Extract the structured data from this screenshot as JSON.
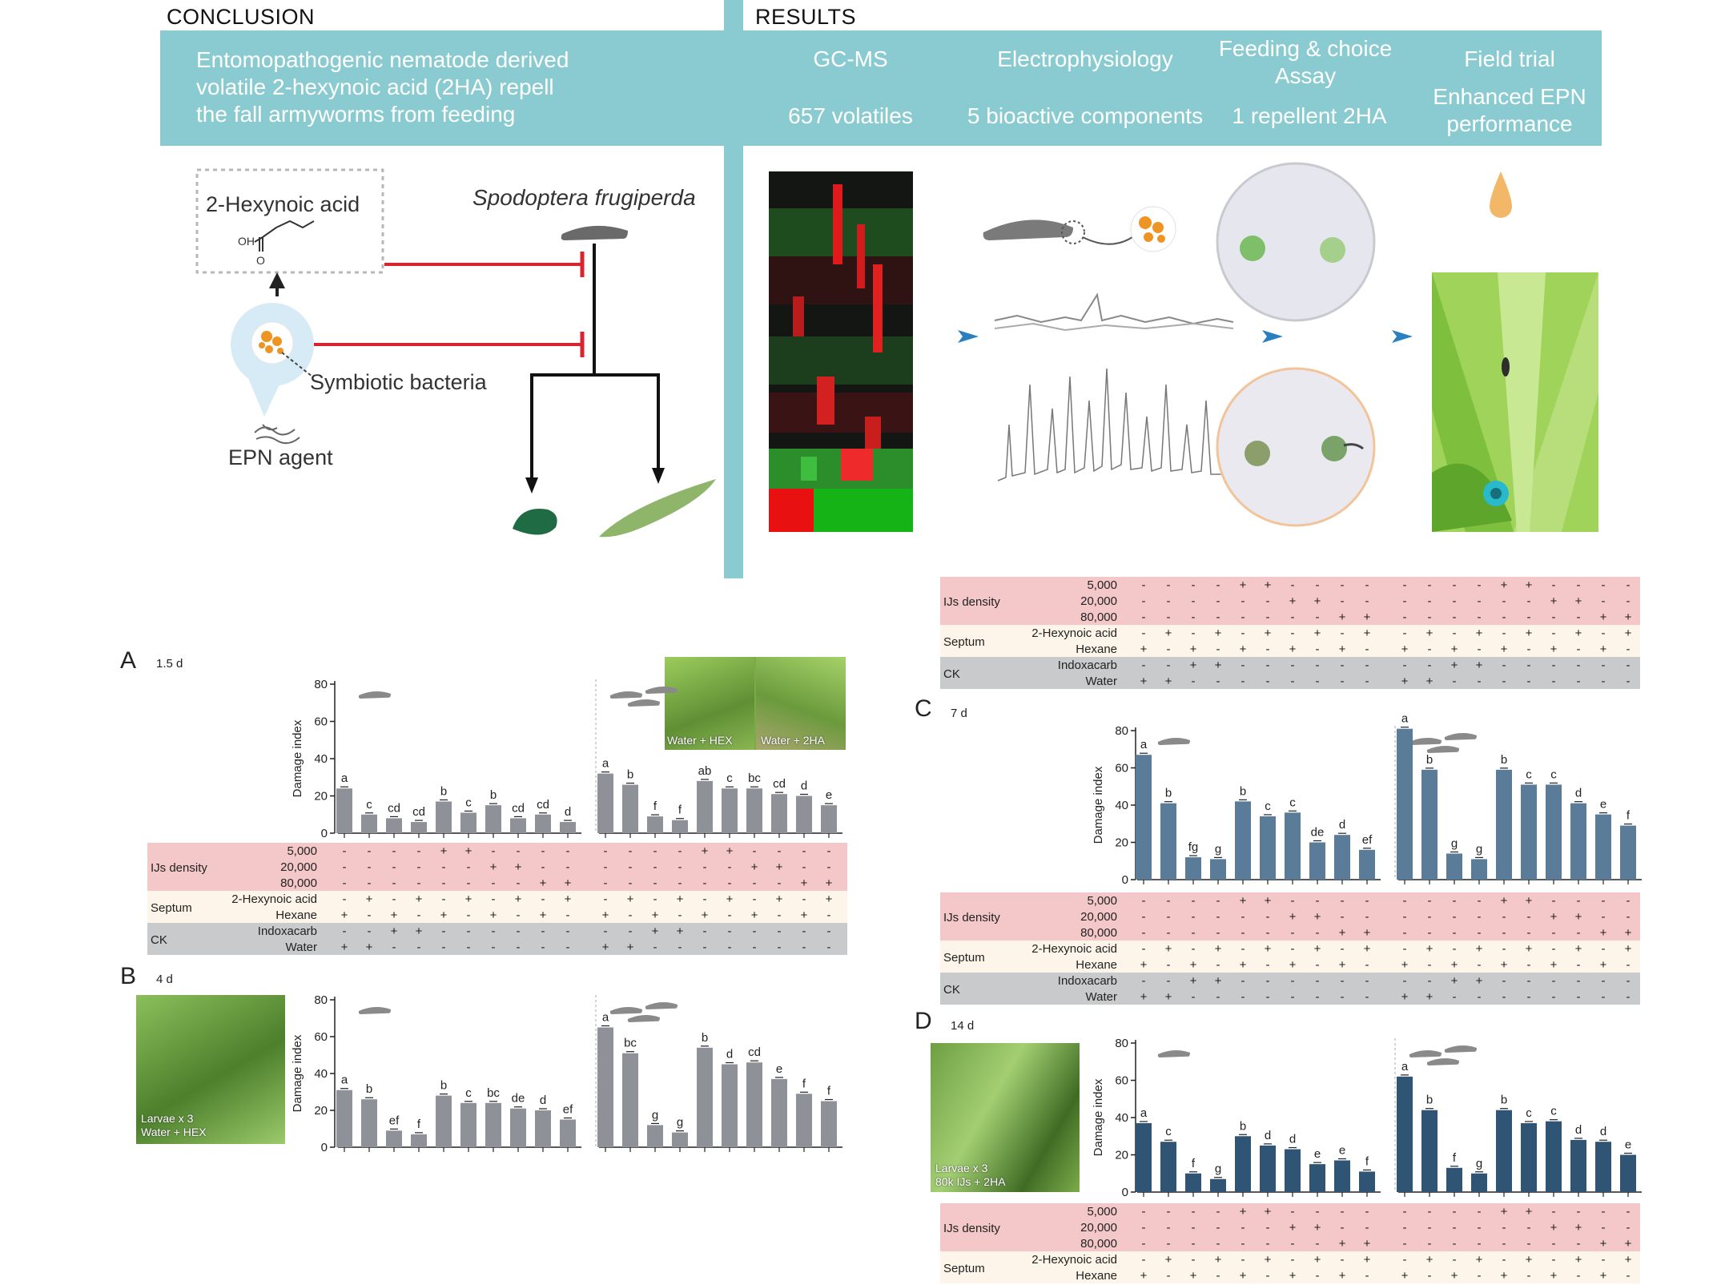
{
  "headers": {
    "conclusion": "CONCLUSION",
    "results": "RESULTS"
  },
  "banner": {
    "conclusion_lines": [
      "Entomopathogenic nematode derived",
      "volatile 2-hexynoic acid (2HA) repell",
      "the fall armyworms from feeding"
    ],
    "gcms_title": "GC-MS",
    "gcms_value": "657 volatiles",
    "ephys_title": "Electrophysiology",
    "ephys_value": "5 bioactive components",
    "feeding_title_lines": [
      "Feeding & choice",
      "Assay"
    ],
    "feeding_value": "1 repellent 2HA",
    "field_title": "Field trial",
    "field_value_lines": [
      "Enhanced EPN",
      "performance"
    ]
  },
  "scheme": {
    "compound": "2-Hexynoic acid",
    "oh_label": "OH",
    "o_label": "O",
    "species": "Spodoptera frugiperda",
    "bacteria": "Symbiotic bacteria",
    "agent": "EPN agent"
  },
  "colors": {
    "teal": "#8acbd1",
    "inhibit": "#d9232e",
    "grey": "#8e9298",
    "steel": "#5b7c99",
    "navy": "#2f5474",
    "pink": "#f4c7c9",
    "cream": "#fdf5ea",
    "cktable": "#c8cacb",
    "arrow": "#2a7fc1"
  },
  "treatment_table": {
    "groups": [
      {
        "label": "IJs density",
        "rows": [
          "5,000",
          "20,000",
          "80,000"
        ]
      },
      {
        "label": "Septum",
        "rows": [
          "2-Hexynoic acid",
          "Hexane"
        ]
      },
      {
        "label": "CK",
        "rows": [
          "Indoxacarb",
          "Water"
        ]
      }
    ],
    "signs": [
      [
        "-",
        "-",
        "-",
        "-",
        "+",
        "+",
        "-",
        "-",
        "-",
        "-"
      ],
      [
        "-",
        "-",
        "-",
        "-",
        "-",
        "-",
        "+",
        "+",
        "-",
        "-"
      ],
      [
        "-",
        "-",
        "-",
        "-",
        "-",
        "-",
        "-",
        "-",
        "+",
        "+"
      ],
      [
        "-",
        "+",
        "-",
        "+",
        "-",
        "+",
        "-",
        "+",
        "-",
        "+"
      ],
      [
        "+",
        "-",
        "+",
        "-",
        "+",
        "-",
        "+",
        "-",
        "+",
        "-"
      ],
      [
        "-",
        "-",
        "+",
        "+",
        "-",
        "-",
        "-",
        "-",
        "-",
        "-"
      ],
      [
        "+",
        "+",
        "-",
        "-",
        "-",
        "-",
        "-",
        "-",
        "-",
        "-"
      ]
    ]
  },
  "panels": {
    "A": {
      "letter": "A",
      "day": "1.5 d"
    },
    "B": {
      "letter": "B",
      "day": "4 d"
    },
    "C": {
      "letter": "C",
      "day": "7 d"
    },
    "D": {
      "letter": "D",
      "day": "14 d"
    }
  },
  "photos": {
    "a_left": "Water + HEX",
    "a_right": "Water + 2HA",
    "b_lines": [
      "Larvae x 3",
      "Water + HEX"
    ],
    "d_lines": [
      "Larvae x 3",
      "80k IJs + 2HA"
    ]
  },
  "chart_data": [
    {
      "type": "bar",
      "panel": "A",
      "day": "1.5 d",
      "ylabel": "Damage index",
      "ylim": [
        0,
        80
      ],
      "yticks": [
        "0",
        "20",
        "40",
        "60",
        "80"
      ],
      "color": "#8e9298",
      "series": [
        {
          "larvae": 1,
          "values": [
            24,
            10,
            8,
            6,
            17,
            11,
            15,
            8,
            10,
            6
          ],
          "labels": [
            "a",
            "c",
            "cd",
            "cd",
            "b",
            "c",
            "b",
            "cd",
            "cd",
            "d"
          ]
        },
        {
          "larvae": 3,
          "values": [
            32,
            26,
            9,
            7,
            28,
            24,
            24,
            21,
            20,
            15
          ],
          "labels": [
            "a",
            "b",
            "f",
            "f",
            "ab",
            "c",
            "bc",
            "cd",
            "d",
            "e"
          ]
        }
      ]
    },
    {
      "type": "bar",
      "panel": "B",
      "day": "4 d",
      "ylabel": "Damage index",
      "ylim": [
        0,
        80
      ],
      "yticks": [
        "0",
        "20",
        "40",
        "60",
        "80"
      ],
      "color": "#8e9298",
      "series": [
        {
          "larvae": 1,
          "values": [
            31,
            26,
            9,
            7,
            28,
            24,
            24,
            21,
            20,
            15
          ],
          "labels": [
            "a",
            "b",
            "ef",
            "f",
            "b",
            "c",
            "bc",
            "de",
            "d",
            "ef"
          ]
        },
        {
          "larvae": 3,
          "values": [
            65,
            51,
            12,
            8,
            54,
            45,
            46,
            37,
            29,
            25
          ],
          "labels": [
            "a",
            "bc",
            "g",
            "g",
            "b",
            "d",
            "cd",
            "e",
            "f",
            "f"
          ]
        }
      ]
    },
    {
      "type": "bar",
      "panel": "C",
      "day": "7 d",
      "ylabel": "Damage index",
      "ylim": [
        0,
        80
      ],
      "yticks": [
        "0",
        "20",
        "40",
        "60",
        "80"
      ],
      "color": "#5b7c99",
      "series": [
        {
          "larvae": 1,
          "values": [
            67,
            41,
            12,
            11,
            42,
            34,
            36,
            20,
            24,
            16
          ],
          "labels": [
            "a",
            "b",
            "fg",
            "g",
            "b",
            "c",
            "c",
            "de",
            "d",
            "ef"
          ]
        },
        {
          "larvae": 3,
          "values": [
            81,
            59,
            14,
            11,
            59,
            51,
            51,
            41,
            35,
            29
          ],
          "labels": [
            "a",
            "b",
            "g",
            "g",
            "b",
            "c",
            "c",
            "d",
            "e",
            "f"
          ]
        }
      ]
    },
    {
      "type": "bar",
      "panel": "D",
      "day": "14 d",
      "ylabel": "Damage index",
      "ylim": [
        0,
        80
      ],
      "yticks": [
        "0",
        "20",
        "40",
        "60",
        "80"
      ],
      "color": "#2f5474",
      "series": [
        {
          "larvae": 1,
          "values": [
            37,
            27,
            10,
            7,
            30,
            25,
            23,
            15,
            17,
            11
          ],
          "labels": [
            "a",
            "c",
            "f",
            "g",
            "b",
            "d",
            "d",
            "e",
            "e",
            "f"
          ]
        },
        {
          "larvae": 3,
          "values": [
            62,
            44,
            13,
            10,
            44,
            37,
            38,
            28,
            27,
            20
          ],
          "labels": [
            "a",
            "b",
            "f",
            "g",
            "b",
            "c",
            "c",
            "d",
            "d",
            "e"
          ]
        }
      ]
    }
  ]
}
